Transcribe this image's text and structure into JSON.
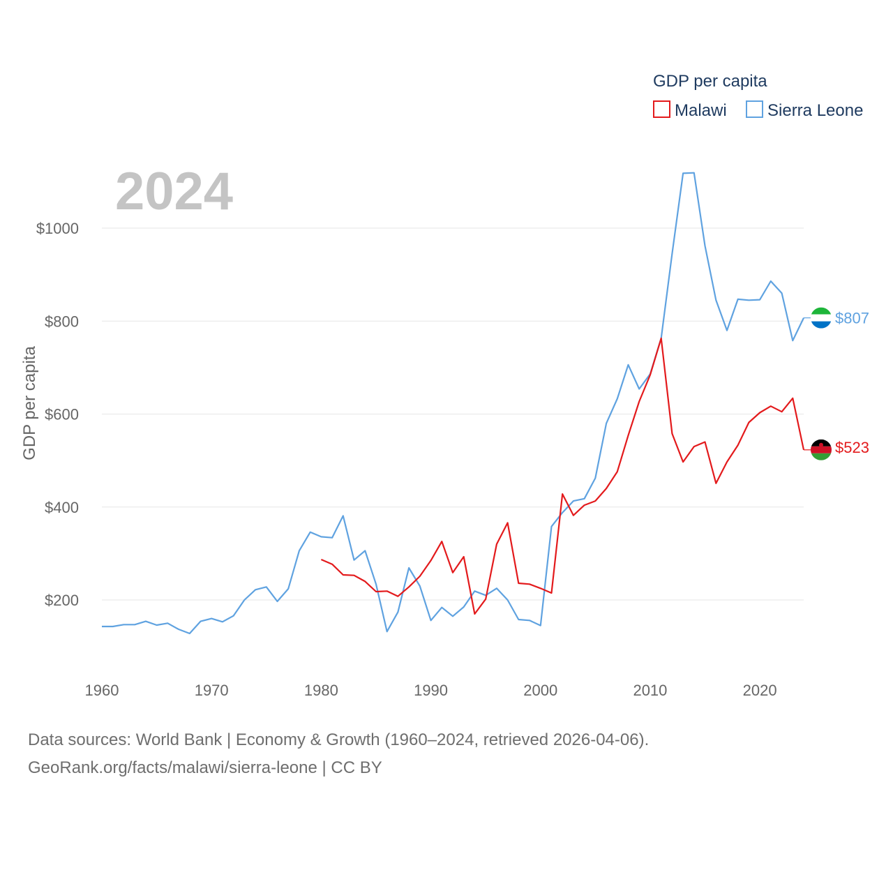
{
  "chart_data": {
    "type": "line",
    "year_label": "2024",
    "ylabel": "GDP per capita",
    "legend": {
      "title": "GDP per capita",
      "position": "top-right",
      "entries": [
        {
          "name": "Malawi",
          "color": "#e31a1c"
        },
        {
          "name": "Sierra Leone",
          "color": "#5fa2e0"
        }
      ]
    },
    "xlim": [
      1960,
      2024
    ],
    "ylim": [
      60,
      1160
    ],
    "x_ticks": [
      {
        "value": 1960,
        "label": "1960"
      },
      {
        "value": 1970,
        "label": "1970"
      },
      {
        "value": 1980,
        "label": "1980"
      },
      {
        "value": 1990,
        "label": "1990"
      },
      {
        "value": 2000,
        "label": "2000"
      },
      {
        "value": 2010,
        "label": "2010"
      },
      {
        "value": 2020,
        "label": "2020"
      }
    ],
    "y_ticks": [
      {
        "value": 200,
        "label": "$200"
      },
      {
        "value": 400,
        "label": "$400"
      },
      {
        "value": 600,
        "label": "$600"
      },
      {
        "value": 800,
        "label": "$800"
      },
      {
        "value": 1000,
        "label": "$1000"
      }
    ],
    "series": [
      {
        "name": "Sierra Leone",
        "color": "#5fa2e0",
        "end_label": "$807",
        "flag": "sierra-leone",
        "x": [
          1960,
          1961,
          1962,
          1963,
          1964,
          1965,
          1966,
          1967,
          1968,
          1969,
          1970,
          1971,
          1972,
          1973,
          1974,
          1975,
          1976,
          1977,
          1978,
          1979,
          1980,
          1981,
          1982,
          1983,
          1984,
          1985,
          1986,
          1987,
          1988,
          1989,
          1990,
          1991,
          1992,
          1993,
          1994,
          1995,
          1996,
          1997,
          1998,
          1999,
          2000,
          2001,
          2002,
          2003,
          2004,
          2005,
          2006,
          2007,
          2008,
          2009,
          2010,
          2011,
          2012,
          2013,
          2014,
          2015,
          2016,
          2017,
          2018,
          2019,
          2020,
          2021,
          2022,
          2023,
          2024
        ],
        "values": [
          143,
          143,
          147,
          147,
          154,
          146,
          150,
          137,
          128,
          154,
          160,
          153,
          166,
          200,
          222,
          228,
          197,
          224,
          306,
          346,
          336,
          334,
          381,
          286,
          306,
          234,
          132,
          174,
          269,
          230,
          156,
          184,
          165,
          185,
          219,
          210,
          225,
          200,
          158,
          156,
          145,
          358,
          388,
          413,
          418,
          462,
          580,
          633,
          706,
          654,
          686,
          763,
          945,
          1118,
          1119,
          962,
          845,
          780,
          847,
          845,
          846,
          886,
          860,
          758,
          807
        ]
      },
      {
        "name": "Malawi",
        "color": "#e31a1c",
        "end_label": "$523",
        "flag": "malawi",
        "x": [
          1980,
          1981,
          1982,
          1983,
          1984,
          1985,
          1986,
          1987,
          1988,
          1989,
          1990,
          1991,
          1992,
          1993,
          1994,
          1995,
          1996,
          1997,
          1998,
          1999,
          2000,
          2001,
          2002,
          2003,
          2004,
          2005,
          2006,
          2007,
          2008,
          2009,
          2010,
          2011,
          2012,
          2013,
          2014,
          2015,
          2016,
          2017,
          2018,
          2019,
          2020,
          2021,
          2022,
          2023,
          2024
        ],
        "values": [
          287,
          277,
          254,
          253,
          240,
          218,
          219,
          208,
          228,
          251,
          285,
          326,
          259,
          293,
          170,
          202,
          320,
          366,
          236,
          234,
          225,
          215,
          428,
          382,
          404,
          413,
          440,
          476,
          554,
          627,
          684,
          763,
          558,
          497,
          530,
          540,
          451,
          497,
          533,
          582,
          603,
          617,
          605,
          634,
          523
        ]
      }
    ]
  },
  "source": {
    "line1": "Data sources: World Bank | Economy & Growth (1960–2024, retrieved 2026-04-06).",
    "line2": "GeoRank.org/facts/malawi/sierra-leone | CC BY"
  }
}
